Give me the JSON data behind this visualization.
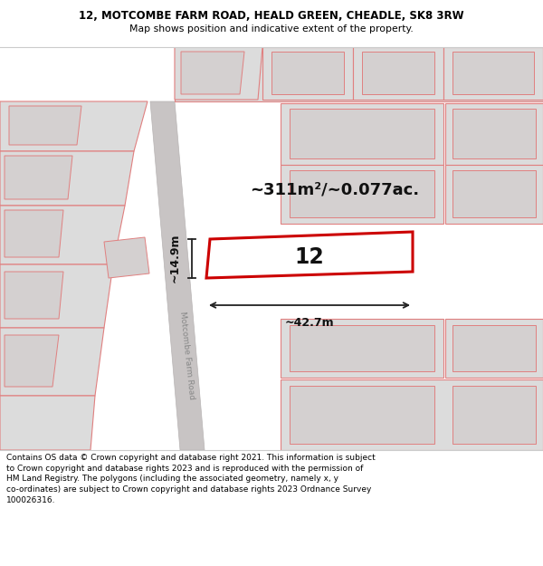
{
  "title_line1": "12, MOTCOMBE FARM ROAD, HEALD GREEN, CHEADLE, SK8 3RW",
  "title_line2": "Map shows position and indicative extent of the property.",
  "area_label": "~311m²/~0.077ac.",
  "property_number": "12",
  "dim_width": "~42.7m",
  "dim_height": "~14.9m",
  "road_label": "Motcombe Farm Road",
  "footer": "Contains OS data © Crown copyright and database right 2021. This information is subject\nto Crown copyright and database rights 2023 and is reproduced with the permission of\nHM Land Registry. The polygons (including the associated geometry, namely x, y\nco-ordinates) are subject to Crown copyright and database rights 2023 Ordnance Survey\n100026316.",
  "map_bg": "#eeecec",
  "plot_fill": "#ffffff",
  "pink_line": "#e08080",
  "red_line": "#cc0000",
  "white_bg": "#ffffff",
  "gray_block": "#dcdcdc",
  "gray_block2": "#d4d0d0",
  "road_color": "#c8c4c4"
}
